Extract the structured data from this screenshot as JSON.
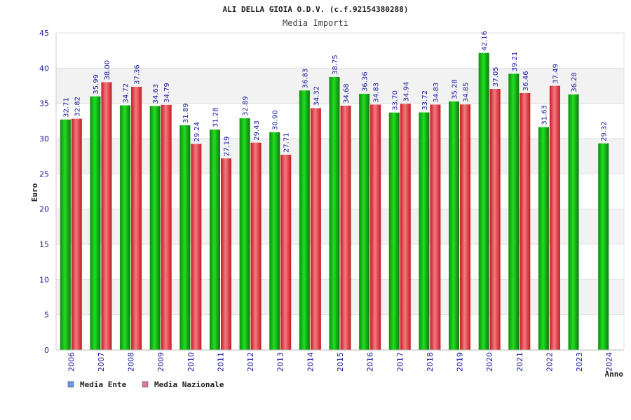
{
  "chart_data": {
    "type": "bar",
    "title": "ALI DELLA GIOIA O.D.V. (c.f.92154380288)",
    "subtitle": "Media Importi",
    "xlabel": "Anno",
    "ylabel": "Euro",
    "ylim": [
      0,
      45
    ],
    "yticks": [
      0,
      5,
      10,
      15,
      20,
      25,
      30,
      35,
      40,
      45
    ],
    "categories": [
      "2006",
      "2007",
      "2008",
      "2009",
      "2010",
      "2011",
      "2012",
      "2013",
      "2014",
      "2015",
      "2016",
      "2017",
      "2018",
      "2019",
      "2020",
      "2021",
      "2022",
      "2023",
      "2024"
    ],
    "series": [
      {
        "name": "Media Ente",
        "legend_color": "#6699ee",
        "bar_color": "#1fb81f",
        "values": [
          32.71,
          35.99,
          34.72,
          34.63,
          31.89,
          31.28,
          32.89,
          30.9,
          36.83,
          38.75,
          36.36,
          33.7,
          33.72,
          35.28,
          42.16,
          39.21,
          31.63,
          36.28,
          29.32
        ],
        "labels": [
          "32.71",
          "35.99",
          "34.72",
          "34.63",
          "31.89",
          "31.28",
          "32.89",
          "30.90",
          "36.83",
          "38.75",
          "36.36",
          "33.70",
          "33.72",
          "35.28",
          "42.16",
          "39.21",
          "31.63",
          "36.28",
          "29.32"
        ]
      },
      {
        "name": "Media Nazionale",
        "legend_color": "#dd77aa",
        "bar_color": "#e8323c",
        "values": [
          32.82,
          38.0,
          37.36,
          34.79,
          29.24,
          27.19,
          29.43,
          27.71,
          34.32,
          34.68,
          34.83,
          34.94,
          34.83,
          34.85,
          37.05,
          36.46,
          37.49,
          null,
          null
        ],
        "labels": [
          "32.82",
          "38.00",
          "37.36",
          "34.79",
          "29.24",
          "27.19",
          "29.43",
          "27.71",
          "34.32",
          "34.68",
          "34.83",
          "34.94",
          "34.83",
          "34.85",
          "37.05",
          "36.46",
          "37.49",
          null,
          null
        ]
      }
    ],
    "grid": true,
    "legend": "bottom-left"
  }
}
